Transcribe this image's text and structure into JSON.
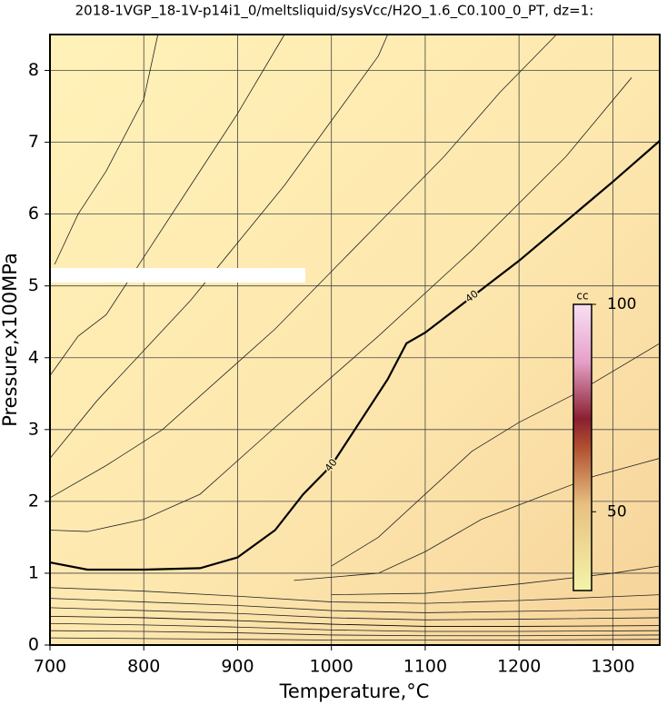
{
  "chart_data": {
    "type": "contour",
    "title": "2018-1VGP_18-1V-p14i1_0/meltsliquid/sysVcc/H2O_1.6_C0.100_0_PT, dz=1:",
    "x_label": "Temperature,°C",
    "y_label": "Pressure,x100MPa",
    "xlim": [
      700,
      1350
    ],
    "ylim": [
      0,
      8.5
    ],
    "xticks": [
      700,
      800,
      900,
      1000,
      1100,
      1200,
      1300
    ],
    "yticks": [
      0,
      1,
      2,
      3,
      4,
      5,
      6,
      7,
      8
    ],
    "grid": true,
    "contours": [
      {
        "level": 40,
        "color": "#000000",
        "x": [
          700,
          740,
          800,
          860,
          900,
          940,
          970,
          1000,
          1030,
          1060,
          1080,
          1100,
          1150,
          1200,
          1250,
          1300,
          1350
        ],
        "y": [
          1.15,
          1.05,
          1.05,
          1.07,
          1.22,
          1.6,
          2.1,
          2.5,
          3.1,
          3.7,
          4.2,
          4.35,
          4.85,
          5.35,
          5.9,
          6.45,
          7.02
        ]
      },
      {
        "color": "#222222",
        "x": [
          705,
          730,
          760,
          800,
          815
        ],
        "y": [
          5.3,
          6.0,
          6.6,
          7.6,
          8.5
        ]
      },
      {
        "color": "#222222",
        "x": [
          700,
          730,
          760,
          800,
          850,
          900,
          950
        ],
        "y": [
          3.75,
          4.3,
          4.6,
          5.4,
          6.4,
          7.4,
          8.5
        ]
      },
      {
        "color": "#222222",
        "x": [
          700,
          750,
          800,
          850,
          900,
          950,
          1000,
          1050,
          1060
        ],
        "y": [
          2.6,
          3.4,
          4.1,
          4.8,
          5.6,
          6.4,
          7.3,
          8.2,
          8.5
        ]
      },
      {
        "color": "#222222",
        "x": [
          700,
          760,
          820,
          880,
          940,
          1000,
          1060,
          1120,
          1180,
          1240
        ],
        "y": [
          2.05,
          2.5,
          3.0,
          3.7,
          4.4,
          5.2,
          6.0,
          6.8,
          7.7,
          8.5
        ]
      },
      {
        "color": "#222222",
        "x": [
          700,
          740,
          800,
          860,
          920,
          980,
          1050,
          1150,
          1250,
          1320
        ],
        "y": [
          1.6,
          1.58,
          1.75,
          2.1,
          2.8,
          3.5,
          4.3,
          5.5,
          6.8,
          7.9
        ]
      },
      {
        "color": "#222222",
        "x": [
          1000,
          1050,
          1100,
          1150,
          1200,
          1260,
          1350
        ],
        "y": [
          1.1,
          1.5,
          2.1,
          2.7,
          3.1,
          3.5,
          4.2
        ]
      },
      {
        "color": "#222222",
        "x": [
          960,
          1050,
          1100,
          1160,
          1220,
          1280,
          1350
        ],
        "y": [
          0.9,
          1.0,
          1.3,
          1.75,
          2.05,
          2.35,
          2.6
        ]
      },
      {
        "color": "#222222",
        "x": [
          1000,
          1100,
          1200,
          1300,
          1350
        ],
        "y": [
          0.7,
          0.72,
          0.85,
          1.0,
          1.1
        ]
      },
      {
        "color": "#222222",
        "x": [
          700,
          800,
          900,
          1000,
          1100,
          1200,
          1350
        ],
        "y": [
          0.8,
          0.75,
          0.68,
          0.6,
          0.58,
          0.62,
          0.7
        ]
      },
      {
        "color": "#222222",
        "x": [
          700,
          800,
          900,
          1000,
          1100,
          1200,
          1350
        ],
        "y": [
          0.65,
          0.6,
          0.55,
          0.48,
          0.45,
          0.47,
          0.5
        ]
      },
      {
        "color": "#222222",
        "x": [
          700,
          800,
          900,
          1000,
          1100,
          1200,
          1350
        ],
        "y": [
          0.52,
          0.48,
          0.44,
          0.38,
          0.35,
          0.36,
          0.38
        ]
      },
      {
        "color": "#000000",
        "x": [
          700,
          800,
          900,
          1000,
          1100,
          1200,
          1350
        ],
        "y": [
          0.4,
          0.38,
          0.34,
          0.29,
          0.26,
          0.26,
          0.27
        ]
      },
      {
        "color": "#222222",
        "x": [
          700,
          800,
          900,
          1000,
          1100,
          1200,
          1350
        ],
        "y": [
          0.3,
          0.28,
          0.25,
          0.21,
          0.19,
          0.19,
          0.2
        ]
      },
      {
        "color": "#222222",
        "x": [
          700,
          800,
          900,
          1000,
          1100,
          1200,
          1350
        ],
        "y": [
          0.2,
          0.19,
          0.17,
          0.14,
          0.13,
          0.13,
          0.14
        ]
      },
      {
        "color": "#222222",
        "x": [
          700,
          800,
          900,
          1000,
          1100,
          1200,
          1350
        ],
        "y": [
          0.1,
          0.09,
          0.08,
          0.07,
          0.07,
          0.07,
          0.08
        ]
      }
    ],
    "colorbar": {
      "label": "cc",
      "lim": [
        31,
        100
      ],
      "ticks": [
        50,
        100
      ]
    }
  }
}
